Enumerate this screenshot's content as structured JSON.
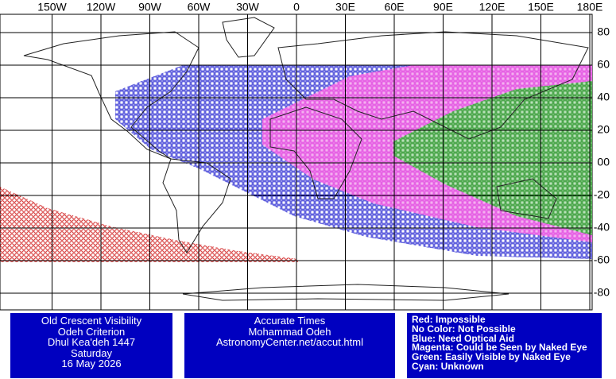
{
  "map": {
    "lon_labels": [
      "150W",
      "120W",
      "90W",
      "60W",
      "30W",
      "0",
      "30E",
      "60E",
      "90E",
      "120E",
      "150E",
      "180E"
    ],
    "lat_labels": [
      "80",
      "60",
      "40",
      "20",
      "00",
      "-20",
      "-40",
      "-60",
      "-80"
    ]
  },
  "info_boxes": [
    {
      "lines": [
        "Old Crescent Visibility",
        "Odeh Criterion",
        "Dhul Kea'deh 1447",
        "Saturday",
        "16 May 2026"
      ]
    },
    {
      "lines": [
        "Accurate Times",
        "Mohammad Odeh",
        "AstronomyCenter.net/accut.html"
      ]
    },
    {
      "lines": [
        "Red: Impossible",
        "No Color: Not Possible",
        "Blue: Need Optical Aid",
        "Magenta: Could be Seen by Naked Eye",
        "Green: Easily Visible by Naked Eye",
        "Cyan: Unknown"
      ]
    }
  ]
}
